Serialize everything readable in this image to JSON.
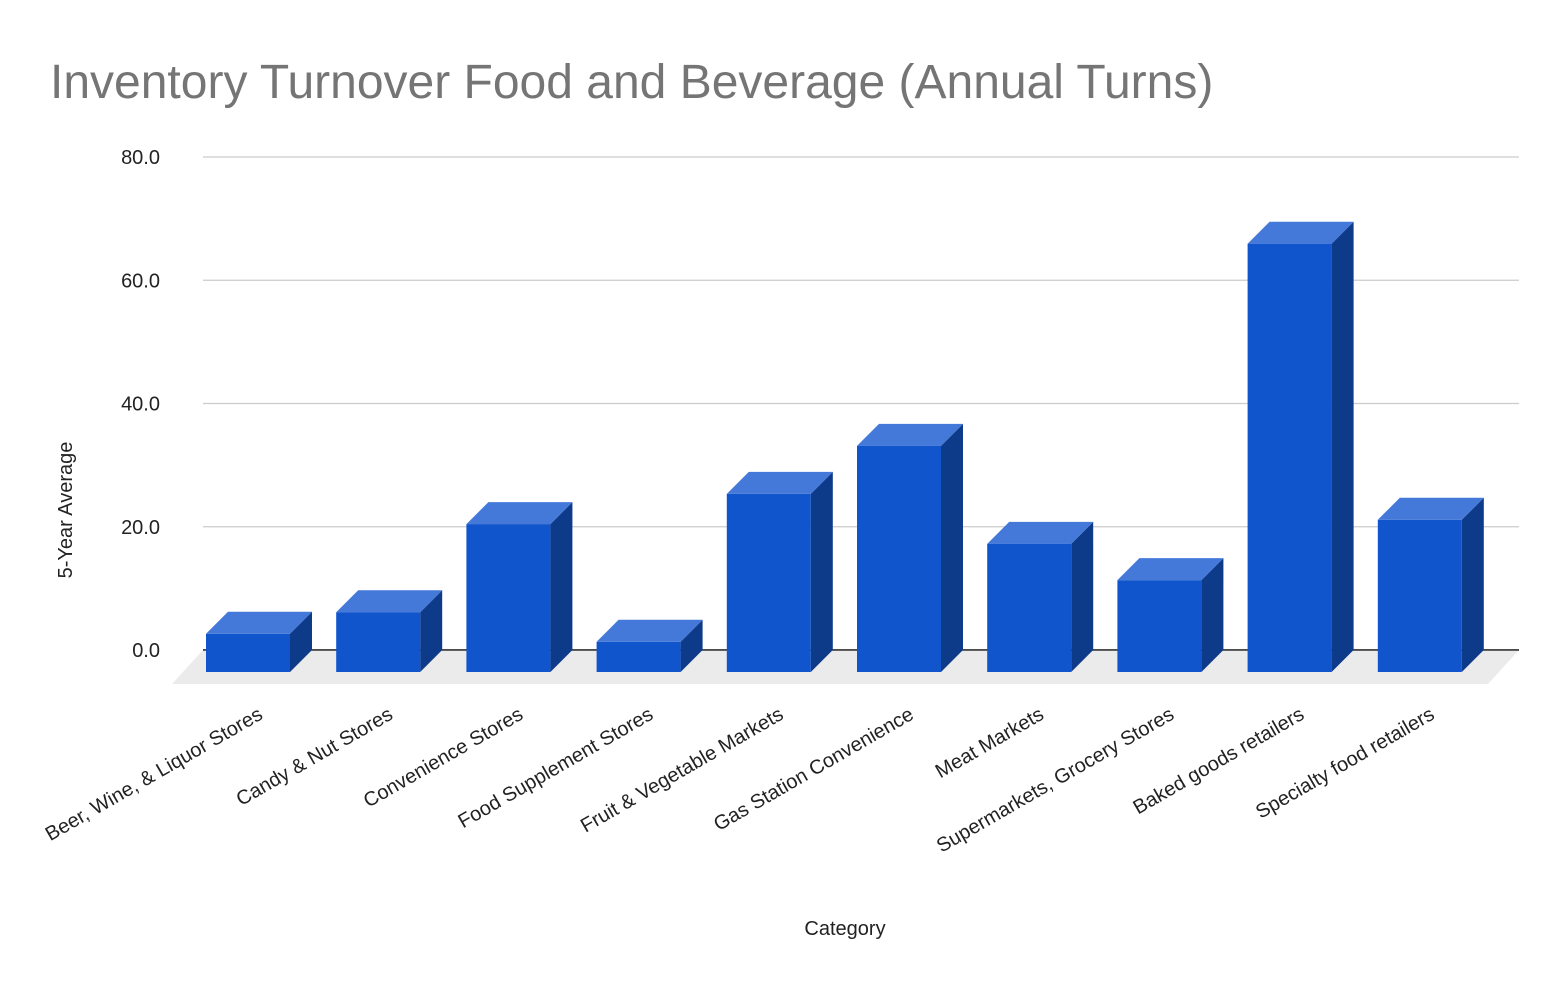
{
  "chart_data": {
    "type": "bar",
    "title": "Inventory Turnover Food and Beverage (Annual Turns)",
    "xlabel": "Category",
    "ylabel": "5-Year Average",
    "ylim": [
      0,
      80
    ],
    "yticks": [
      "0.0",
      "20.0",
      "40.0",
      "60.0",
      "80.0"
    ],
    "ytick_values": [
      0,
      20,
      40,
      60,
      80
    ],
    "grid": true,
    "style": "3d",
    "categories": [
      "Beer, Wine, & Liquor Stores",
      "Candy & Nut Stores",
      "Convenience Stores",
      "Food Supplement Stores",
      "Fruit & Vegetable Markets",
      "Gas Station Convenience",
      "Meat Markets",
      "Supermarkets, Grocery Stores",
      "Baked goods retailers",
      "Specialty food retailers"
    ],
    "values": [
      6.2,
      9.7,
      24.0,
      4.9,
      28.9,
      36.7,
      20.8,
      14.9,
      69.5,
      24.7
    ],
    "colors": {
      "front": "#1155cc",
      "top": "#4479d9",
      "side": "#0e3a8a",
      "floor": "#ebebeb",
      "grid": "#cccccc",
      "title": "#757575"
    }
  }
}
